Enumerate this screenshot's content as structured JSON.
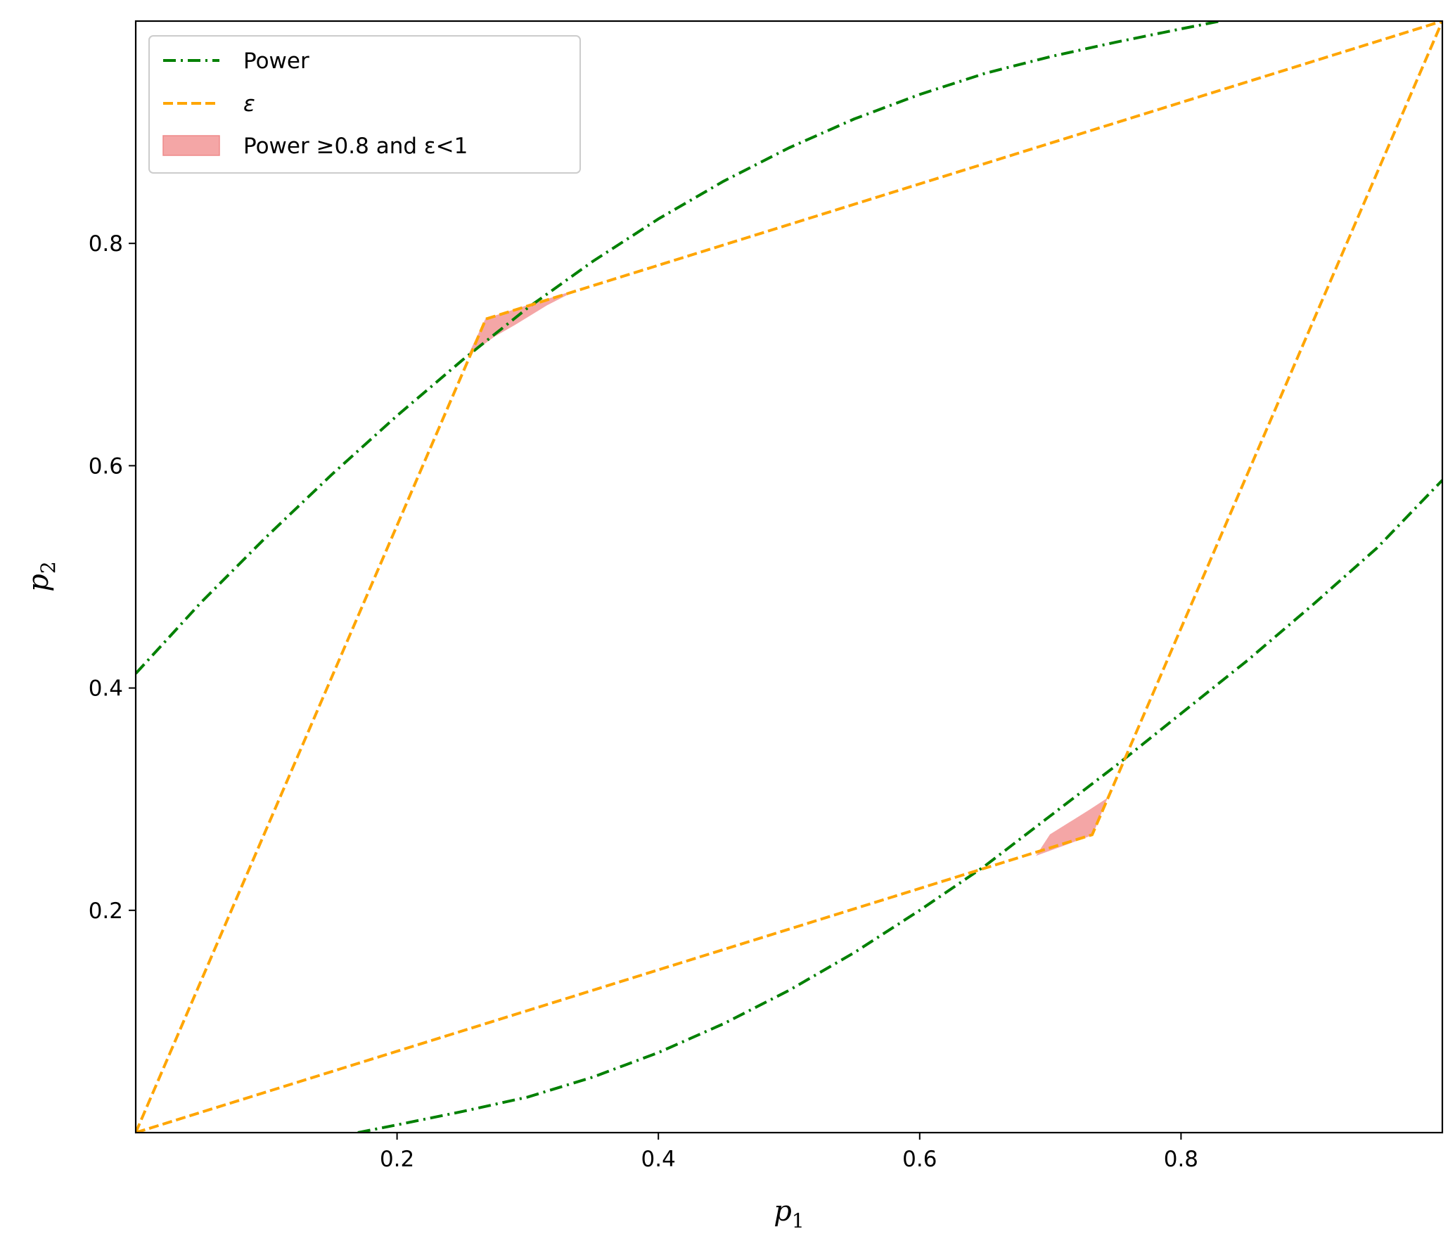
{
  "chart_data": {
    "type": "line",
    "xlabel": {
      "base": "p",
      "sub": "1"
    },
    "ylabel": {
      "base": "p",
      "sub": "2"
    },
    "xlim": [
      0.0,
      1.0
    ],
    "ylim": [
      0.0,
      1.0
    ],
    "xticks": [
      0.2,
      0.4,
      0.6,
      0.8
    ],
    "yticks": [
      0.2,
      0.4,
      0.6,
      0.8
    ],
    "xtick_labels": [
      "0.2",
      "0.4",
      "0.6",
      "0.8"
    ],
    "ytick_labels": [
      "0.2",
      "0.4",
      "0.6",
      "0.8"
    ],
    "grid": false,
    "legend_position": "top-left",
    "series": [
      {
        "name": "Power",
        "style": "dash-dot",
        "color": "#008000",
        "segments": [
          {
            "x": [
              0.0,
              0.05,
              0.1,
              0.15,
              0.2,
              0.25,
              0.3,
              0.35,
              0.4,
              0.45,
              0.5,
              0.55,
              0.6,
              0.65,
              0.7,
              0.75,
              0.8,
              0.83
            ],
            "y": [
              0.413,
              0.477,
              0.536,
              0.592,
              0.645,
              0.695,
              0.742,
              0.784,
              0.822,
              0.856,
              0.886,
              0.912,
              0.934,
              0.953,
              0.968,
              0.981,
              0.993,
              1.0
            ]
          },
          {
            "x": [
              0.17,
              0.2,
              0.25,
              0.3,
              0.35,
              0.4,
              0.45,
              0.5,
              0.55,
              0.6,
              0.65,
              0.7,
              0.75,
              0.8,
              0.85,
              0.9,
              0.95,
              1.0
            ],
            "y": [
              0.0,
              0.007,
              0.019,
              0.032,
              0.05,
              0.072,
              0.098,
              0.128,
              0.162,
              0.2,
              0.24,
              0.285,
              0.33,
              0.377,
              0.424,
              0.474,
              0.526,
              0.587
            ]
          }
        ]
      },
      {
        "name": "ε",
        "style": "dashed",
        "color": "#FFA500",
        "segments": [
          {
            "x": [
              0.0,
              0.268,
              1.0
            ],
            "y": [
              0.0,
              0.732,
              1.0
            ]
          },
          {
            "x": [
              0.0,
              0.732,
              1.0
            ],
            "y": [
              0.0,
              0.268,
              1.0
            ]
          }
        ]
      }
    ],
    "regions": [
      {
        "name": "Power  ≥0.8 and ε<1",
        "color": "#F4A6A6",
        "polygons": [
          {
            "x": [
              0.255,
              0.268,
              0.335,
              0.315,
              0.29,
              0.275
            ],
            "y": [
              0.7,
              0.732,
              0.757,
              0.745,
              0.727,
              0.717
            ]
          },
          {
            "x": [
              0.69,
              0.732,
              0.743,
              0.73,
              0.715,
              0.7
            ],
            "y": [
              0.25,
              0.268,
              0.3,
              0.29,
              0.279,
              0.268
            ]
          }
        ]
      }
    ],
    "legend": [
      {
        "label": "Power",
        "kind": "line",
        "style": "dash-dot",
        "color": "#008000"
      },
      {
        "label": "ε",
        "kind": "line",
        "style": "dashed",
        "color": "#FFA500"
      },
      {
        "label": "Power  ≥0.8 and ε<1",
        "kind": "patch",
        "color": "#F4A6A6"
      }
    ]
  }
}
